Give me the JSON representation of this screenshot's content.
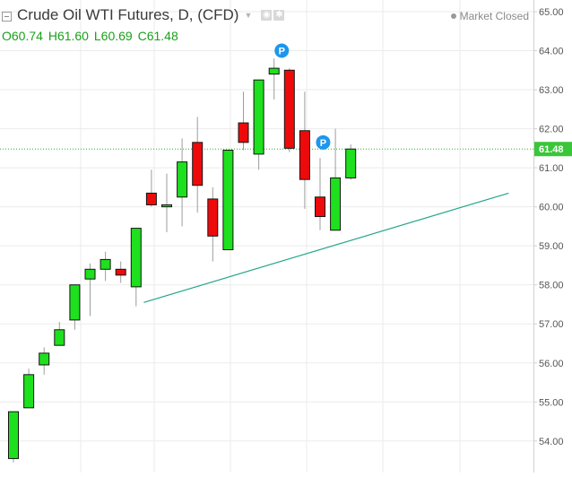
{
  "legend": {
    "title": "Crude Oil WTI Futures, D, (CFD)",
    "caret_icon": "chevron-down-icon",
    "tool_icons": [
      "eye-icon",
      "gear-icon"
    ]
  },
  "ohlc": {
    "open": "O60.74",
    "high": "H61.60",
    "low": "L60.69",
    "close": "C61.48"
  },
  "status": {
    "text": "Market Closed"
  },
  "colors": {
    "up": "#1ee01e",
    "down": "#ee0a0a",
    "wick": "#9c9c9c",
    "grid": "#ebebeb",
    "trendline": "#22a68a",
    "price_line": "#27b327",
    "price_badge": "#39c639",
    "marker": "#1e96ee",
    "ohlc_text": "#1aa01a"
  },
  "chart_data": {
    "type": "candlestick",
    "title": "Crude Oil WTI Futures, D, (CFD)",
    "ylim": [
      53.47,
      65.2
    ],
    "y_ticks": [
      "54.00",
      "55.00",
      "56.00",
      "57.00",
      "58.00",
      "59.00",
      "60.00",
      "61.00",
      "62.00",
      "63.00",
      "64.00",
      "65.00"
    ],
    "grid": true,
    "candles": [
      {
        "open": 53.55,
        "high": 54.75,
        "low": 53.45,
        "close": 54.75
      },
      {
        "open": 54.85,
        "high": 55.85,
        "low": 54.85,
        "close": 55.7
      },
      {
        "open": 55.95,
        "high": 56.4,
        "low": 55.7,
        "close": 56.25
      },
      {
        "open": 56.45,
        "high": 57.05,
        "low": 56.45,
        "close": 56.85
      },
      {
        "open": 57.1,
        "high": 58.0,
        "low": 56.85,
        "close": 58.0
      },
      {
        "open": 58.15,
        "high": 58.55,
        "low": 57.2,
        "close": 58.4
      },
      {
        "open": 58.4,
        "high": 58.85,
        "low": 58.1,
        "close": 58.65
      },
      {
        "open": 58.4,
        "high": 58.6,
        "low": 58.05,
        "close": 58.25
      },
      {
        "open": 57.95,
        "high": 59.45,
        "low": 57.45,
        "close": 59.45
      },
      {
        "open": 60.35,
        "high": 60.95,
        "low": 60.0,
        "close": 60.05
      },
      {
        "open": 60.0,
        "high": 60.85,
        "low": 59.35,
        "close": 60.05
      },
      {
        "open": 60.25,
        "high": 61.75,
        "low": 59.5,
        "close": 61.15
      },
      {
        "open": 61.65,
        "high": 62.3,
        "low": 59.85,
        "close": 60.55
      },
      {
        "open": 60.2,
        "high": 60.5,
        "low": 58.6,
        "close": 59.25
      },
      {
        "open": 58.9,
        "high": 61.45,
        "low": 58.9,
        "close": 61.45
      },
      {
        "open": 62.15,
        "high": 62.95,
        "low": 61.45,
        "close": 61.65
      },
      {
        "open": 61.35,
        "high": 63.25,
        "low": 60.95,
        "close": 63.25
      },
      {
        "open": 63.4,
        "high": 63.8,
        "low": 62.75,
        "close": 63.55
      },
      {
        "open": 63.5,
        "high": 63.55,
        "low": 61.4,
        "close": 61.5
      },
      {
        "open": 61.95,
        "high": 62.95,
        "low": 59.95,
        "close": 60.7
      },
      {
        "open": 60.25,
        "high": 61.25,
        "low": 59.4,
        "close": 59.75
      },
      {
        "open": 59.4,
        "high": 62.0,
        "low": 59.4,
        "close": 60.74
      },
      {
        "open": 60.74,
        "high": 61.6,
        "low": 60.69,
        "close": 61.48
      }
    ],
    "last_price": 61.48,
    "last_price_label": "61.48",
    "trendline": {
      "from": {
        "bar": 8.5,
        "price": 57.55
      },
      "to": {
        "bar": 32.3,
        "price": 60.35
      }
    },
    "markers": [
      {
        "label": "P",
        "bar": 17.5,
        "price": 64.0
      },
      {
        "label": "P",
        "bar": 20.2,
        "price": 61.65
      }
    ]
  }
}
